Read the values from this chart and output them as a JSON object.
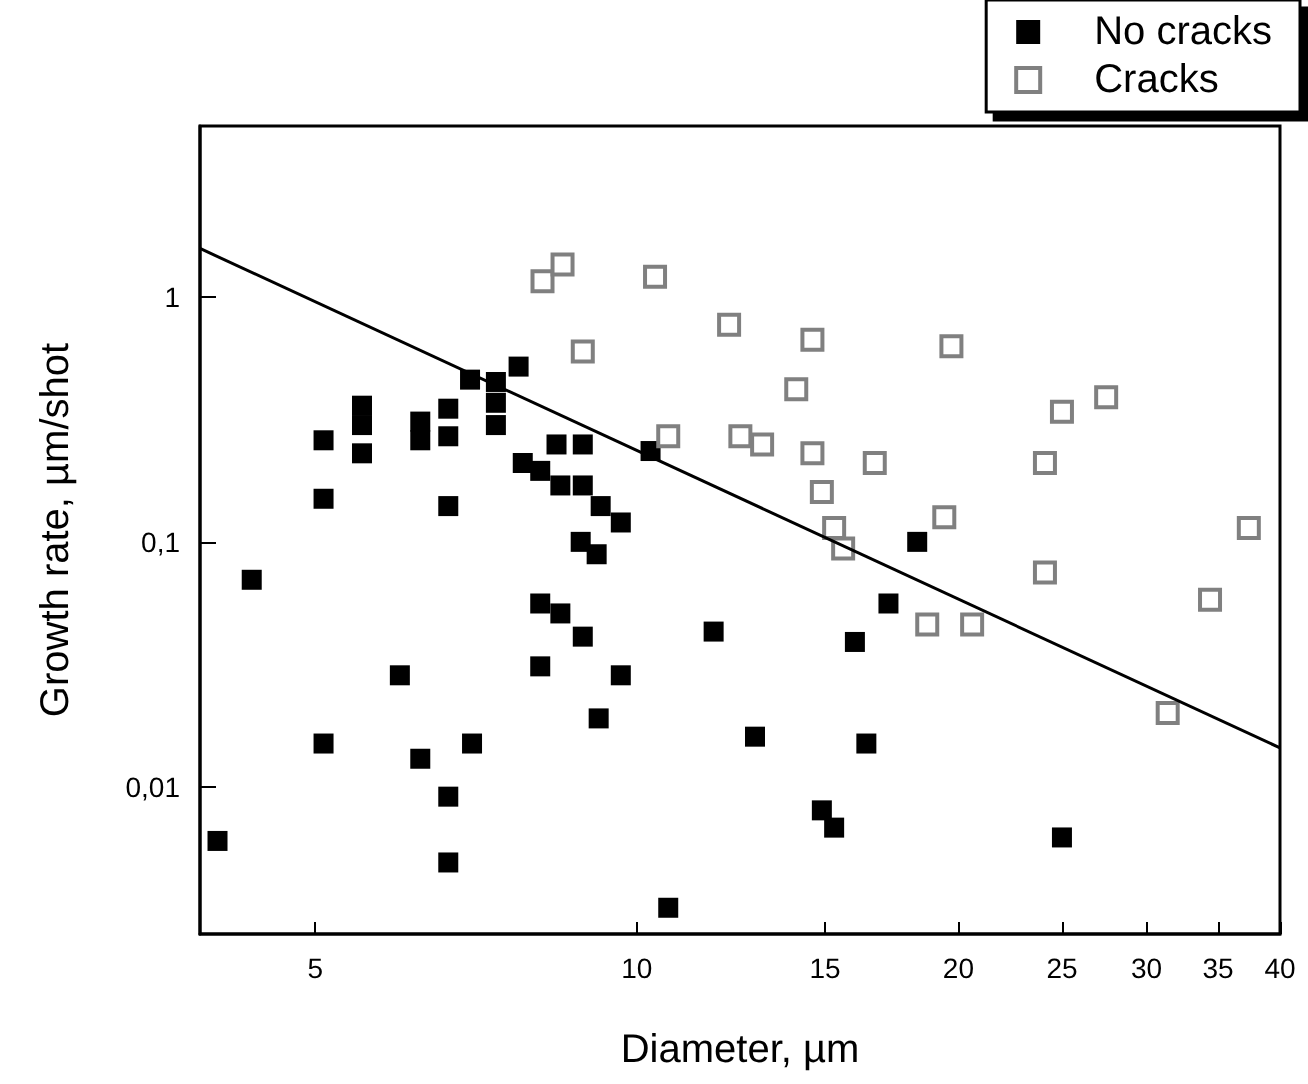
{
  "chart_data": {
    "type": "scatter",
    "xlabel": "Diameter, µm",
    "ylabel": "Growth rate, µm/shot",
    "log": "xy",
    "xlim": [
      3.9,
      40
    ],
    "ylim": [
      0.0025,
      5
    ],
    "xticks": [
      5,
      10,
      15,
      20,
      25,
      30,
      35,
      40
    ],
    "yticks": [
      {
        "value": 0.01,
        "label": "0,01"
      },
      {
        "value": 0.1,
        "label": "0,1"
      },
      1
    ],
    "grid": false,
    "legend": "top right",
    "marker": "square",
    "series": [
      {
        "name": "No cracks",
        "color": "#000000",
        "x": [
          4.05,
          4.36,
          5.09,
          5.09,
          5.09,
          5.53,
          5.53,
          5.53,
          6.0,
          6.27,
          6.27,
          6.27,
          6.66,
          6.66,
          6.66,
          6.66,
          6.66,
          6.98,
          7.01,
          7.38,
          7.38,
          7.38,
          7.75,
          7.82,
          8.12,
          8.12,
          8.12,
          8.41,
          8.48,
          8.48,
          8.86,
          8.9,
          8.9,
          8.9,
          9.17,
          9.21,
          9.25,
          9.66,
          9.66,
          10.3,
          10.7,
          11.8,
          12.9,
          14.9,
          15.3,
          16.0,
          16.4,
          17.2,
          18.3,
          25.0
        ],
        "values": [
          0.006,
          0.07,
          0.26,
          0.15,
          0.015,
          0.36,
          0.3,
          0.23,
          0.0285,
          0.31,
          0.26,
          0.013,
          0.35,
          0.27,
          0.14,
          0.0091,
          0.0049,
          0.46,
          0.015,
          0.45,
          0.37,
          0.3,
          0.52,
          0.21,
          0.195,
          0.056,
          0.031,
          0.25,
          0.17,
          0.051,
          0.1,
          0.25,
          0.17,
          0.041,
          0.089,
          0.019,
          0.14,
          0.12,
          0.0285,
          0.235,
          0.0032,
          0.043,
          0.016,
          0.008,
          0.0068,
          0.039,
          0.015,
          0.056,
          0.1,
          0.0062
        ]
      },
      {
        "name": "Cracks",
        "color": "#808080",
        "x": [
          8.16,
          8.52,
          8.9,
          10.4,
          10.7,
          12.2,
          12.5,
          13.1,
          14.1,
          14.6,
          14.6,
          14.9,
          15.3,
          15.6,
          16.7,
          18.7,
          19.4,
          19.7,
          20.6,
          24.1,
          24.1,
          25.0,
          27.5,
          31.4,
          34.4,
          37.4
        ],
        "values": [
          1.16,
          1.36,
          0.6,
          1.21,
          0.27,
          0.77,
          0.27,
          0.25,
          0.42,
          0.67,
          0.23,
          0.16,
          0.114,
          0.094,
          0.21,
          0.046,
          0.126,
          0.63,
          0.046,
          0.21,
          0.075,
          0.34,
          0.39,
          0.02,
          0.058,
          0.114
        ]
      },
      {
        "type": "line",
        "color": "#000000",
        "marker": "none",
        "x": [
          3.9,
          40
        ],
        "values": [
          1.58,
          0.0144
        ]
      }
    ]
  }
}
